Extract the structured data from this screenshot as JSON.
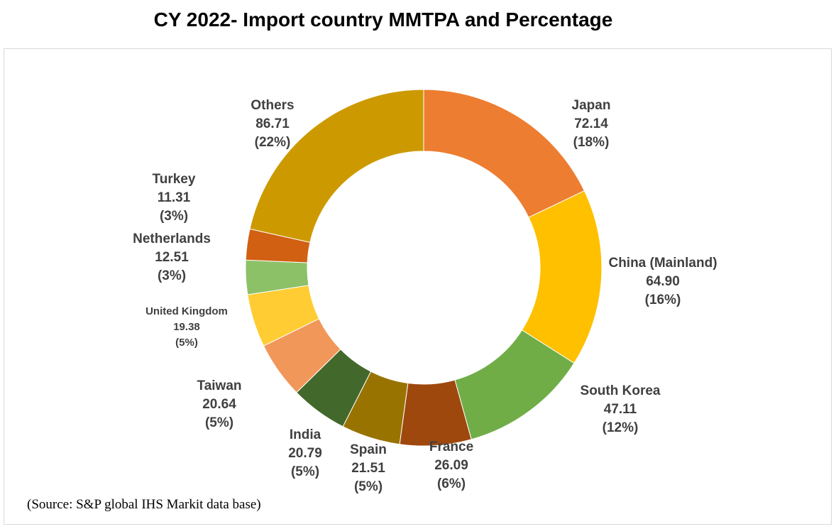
{
  "chart_data": {
    "type": "pie",
    "title": "CY 2022- Import country MMTPA and Percentage",
    "source": "(Source: S&P global IHS Markit data base)",
    "slices": [
      {
        "label": "Japan",
        "value": 72.14,
        "value_text": "72.14",
        "pct_text": "(18%)",
        "color": "#ED7D31"
      },
      {
        "label": "China (Mainland)",
        "value": 64.9,
        "value_text": "64.90",
        "pct_text": "(16%)",
        "color": "#FFC000"
      },
      {
        "label": "South Korea",
        "value": 47.11,
        "value_text": "47.11",
        "pct_text": "(12%)",
        "color": "#70AD47"
      },
      {
        "label": "France",
        "value": 26.09,
        "value_text": "26.09",
        "pct_text": "(6%)",
        "color": "#9E480E"
      },
      {
        "label": "Spain",
        "value": 21.51,
        "value_text": "21.51",
        "pct_text": "(5%)",
        "color": "#997300"
      },
      {
        "label": "India",
        "value": 20.79,
        "value_text": "20.79",
        "pct_text": "(5%)",
        "color": "#43682B"
      },
      {
        "label": "Taiwan",
        "value": 20.64,
        "value_text": "20.64",
        "pct_text": "(5%)",
        "color": "#F1975A"
      },
      {
        "label": "United Kingdom",
        "value": 19.38,
        "value_text": "19.38",
        "pct_text": "(5%)",
        "color": "#FFCD33"
      },
      {
        "label": "Netherlands",
        "value": 12.51,
        "value_text": "12.51",
        "pct_text": "(3%)",
        "color": "#8CC168"
      },
      {
        "label": "Turkey",
        "value": 11.31,
        "value_text": "11.31",
        "pct_text": "(3%)",
        "color": "#D26012"
      },
      {
        "label": "Others",
        "value": 86.71,
        "value_text": "86.71",
        "pct_text": "(22%)",
        "color": "#CC9A00"
      }
    ]
  }
}
